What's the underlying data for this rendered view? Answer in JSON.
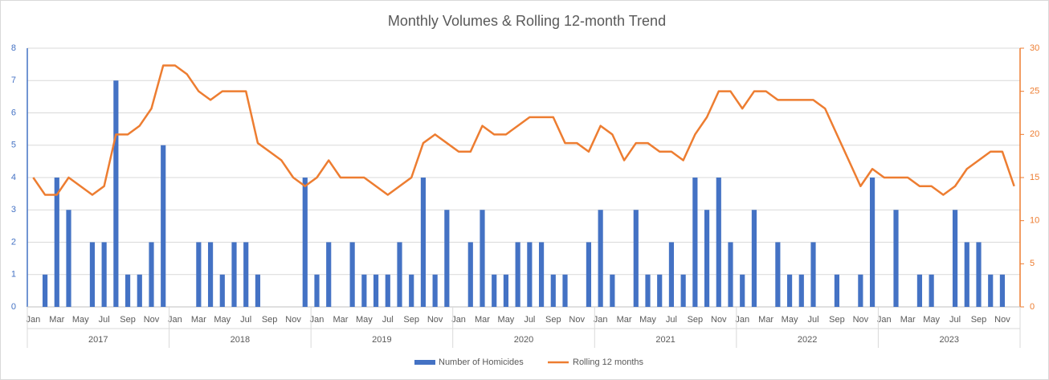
{
  "chart_data": {
    "type": "bar",
    "title": "Monthly Volumes & Rolling 12-month Trend",
    "categories": [
      "Jan",
      null,
      "Mar",
      null,
      "May",
      null,
      "Jul",
      null,
      "Sep",
      null,
      "Nov",
      null,
      "Jan",
      null,
      "Mar",
      null,
      "May",
      null,
      "Jul",
      null,
      "Sep",
      null,
      "Nov",
      null,
      "Jan",
      null,
      "Mar",
      null,
      "May",
      null,
      "Jul",
      null,
      "Sep",
      null,
      "Nov",
      null,
      "Jan",
      null,
      "Mar",
      null,
      "May",
      null,
      "Jul",
      null,
      "Sep",
      null,
      "Nov",
      null,
      "Jan",
      null,
      "Mar",
      null,
      "May",
      null,
      "Jul",
      null,
      "Sep",
      null,
      "Nov",
      null,
      "Jan",
      null,
      "Mar",
      null,
      "May",
      null,
      "Jul",
      null,
      "Sep",
      null,
      "Nov",
      null,
      "Jan",
      null,
      "Mar",
      null,
      "May",
      null,
      "Jul",
      null,
      "Sep",
      null,
      "Nov",
      null
    ],
    "year_groups": [
      "2017",
      "2018",
      "2019",
      "2020",
      "2021",
      "2022",
      "2023"
    ],
    "series": [
      {
        "name": "Number of Homicides",
        "type": "bar",
        "color": "#4472c4",
        "values": [
          0,
          1,
          4,
          3,
          0,
          2,
          2,
          7,
          1,
          1,
          2,
          5,
          0,
          0,
          2,
          2,
          1,
          2,
          2,
          1,
          0,
          0,
          0,
          4,
          1,
          2,
          0,
          2,
          1,
          1,
          1,
          2,
          1,
          4,
          1,
          3,
          0,
          2,
          3,
          1,
          1,
          2,
          2,
          2,
          1,
          1,
          0,
          2,
          3,
          1,
          0,
          3,
          1,
          1,
          2,
          1,
          4,
          3,
          4,
          2,
          1,
          3,
          0,
          2,
          1,
          1,
          2,
          0,
          1,
          0,
          1,
          4,
          0,
          3,
          0,
          1,
          1,
          0,
          3,
          2,
          2,
          1,
          1,
          0
        ]
      },
      {
        "name": "Rolling 12 months",
        "type": "line",
        "axis": "y2",
        "color": "#ed7d31",
        "values": [
          15,
          13,
          13,
          15,
          14,
          13,
          14,
          20,
          20,
          21,
          23,
          28,
          28,
          27,
          25,
          24,
          25,
          25,
          25,
          19,
          18,
          17,
          15,
          14,
          15,
          17,
          15,
          15,
          15,
          14,
          13,
          14,
          15,
          19,
          20,
          19,
          18,
          18,
          21,
          20,
          20,
          21,
          22,
          22,
          22,
          19,
          19,
          18,
          21,
          20,
          17,
          19,
          19,
          18,
          18,
          17,
          20,
          22,
          25,
          25,
          23,
          25,
          25,
          24,
          24,
          24,
          24,
          23,
          20,
          17,
          14,
          16,
          15,
          15,
          15,
          14,
          14,
          13,
          14,
          16,
          17,
          18,
          18,
          14
        ]
      }
    ],
    "ylim": [
      0,
      8
    ],
    "yticks": [
      0,
      1,
      2,
      3,
      4,
      5,
      6,
      7,
      8
    ],
    "y2lim": [
      0,
      30
    ],
    "y2ticks": [
      0,
      5,
      10,
      15,
      20,
      25,
      30
    ],
    "grid": true,
    "legend": "bottom"
  }
}
